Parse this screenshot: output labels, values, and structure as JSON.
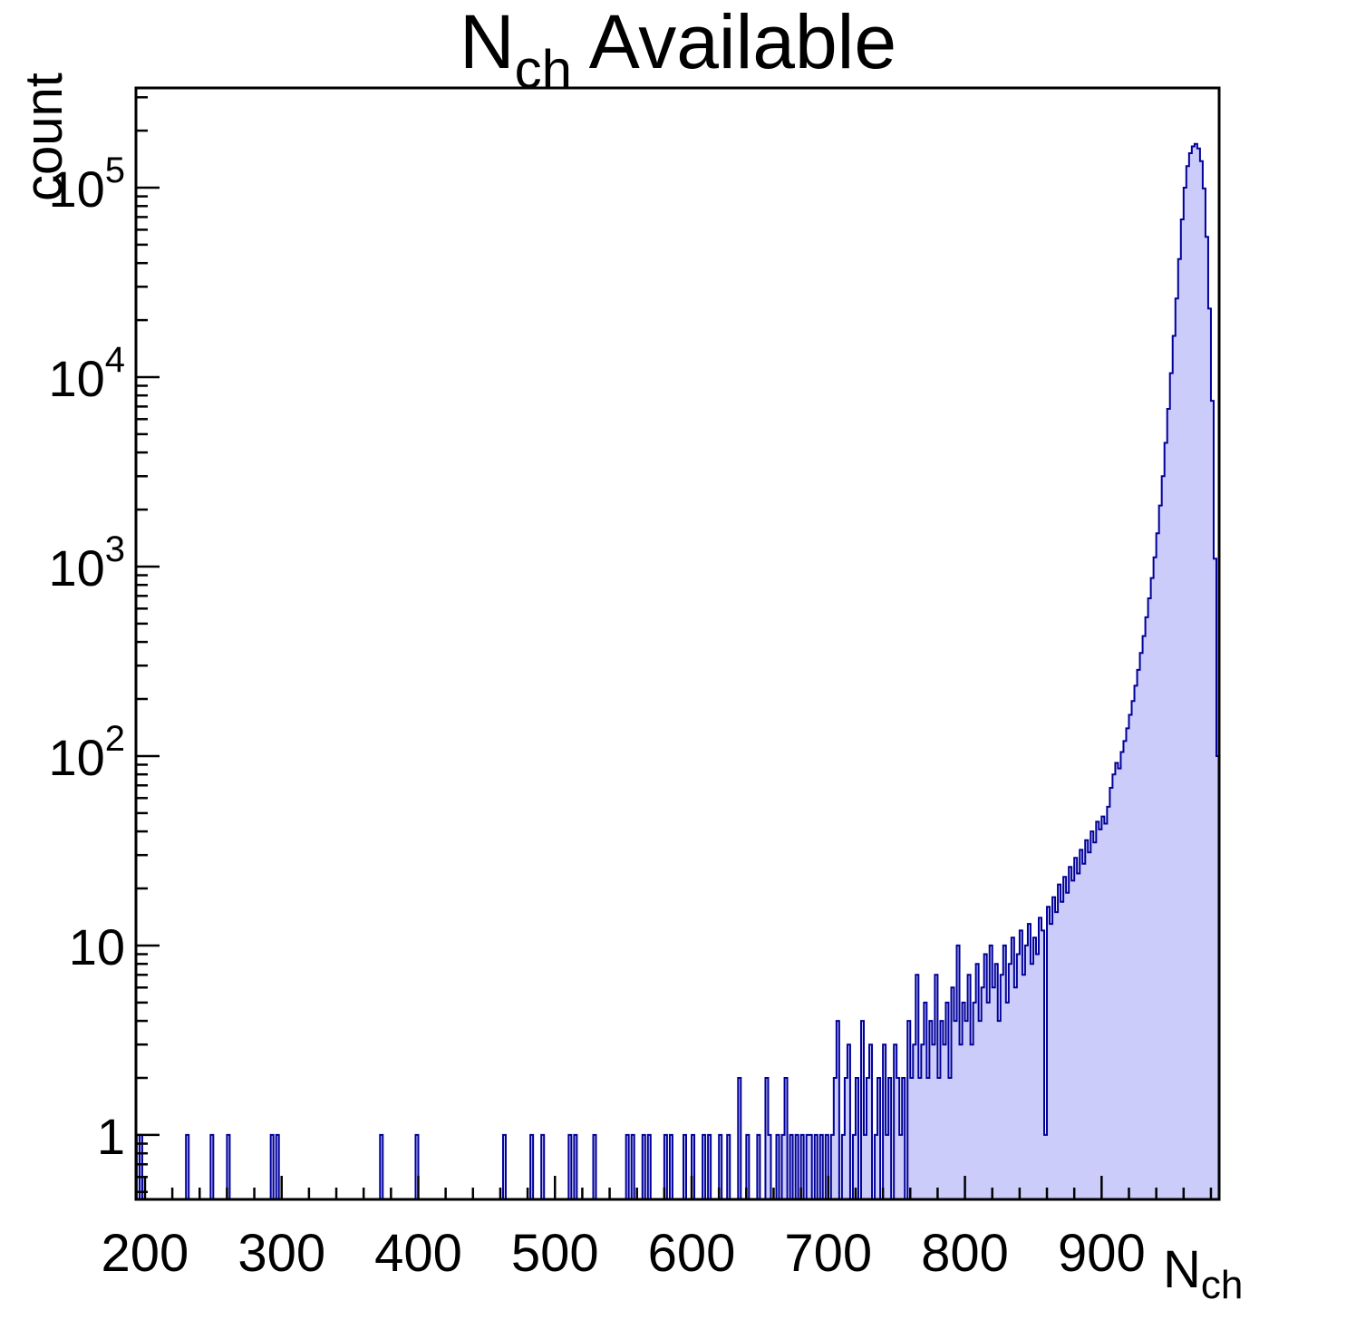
{
  "title": {
    "prefix": "N",
    "subscript": "ch",
    "suffix": " Available"
  },
  "axes": {
    "y_title": "count",
    "x_title_prefix": "N",
    "x_title_subscript": "ch"
  },
  "colors": {
    "fill": "#ccccfb",
    "line": "#000099",
    "axis": "#000000",
    "background": "#ffffff"
  },
  "chart_data": {
    "type": "bar",
    "title": "N_ch Available",
    "xlabel": "N_ch",
    "ylabel": "count",
    "x_range": [
      193.4,
      986
    ],
    "y_scale": "log",
    "y_range": [
      0.457,
      336000
    ],
    "grid": false,
    "legend": false,
    "bin_width": 2,
    "x_major_ticks": [
      200,
      300,
      400,
      500,
      600,
      700,
      800,
      900
    ],
    "x_minor_step": 20,
    "y_major_labels": [
      {
        "value": 1,
        "text": "1"
      },
      {
        "value": 10,
        "text": "10"
      },
      {
        "value": 100,
        "text": "10",
        "exp": "2"
      },
      {
        "value": 1000,
        "text": "10",
        "exp": "3"
      },
      {
        "value": 10000,
        "text": "10",
        "exp": "4"
      },
      {
        "value": 100000,
        "text": "10",
        "exp": "5"
      }
    ],
    "bins": [
      [
        192,
        1
      ],
      [
        196,
        1
      ],
      [
        230,
        1
      ],
      [
        248,
        1
      ],
      [
        260,
        1
      ],
      [
        292,
        1
      ],
      [
        296,
        1
      ],
      [
        372,
        1
      ],
      [
        398,
        1
      ],
      [
        462,
        1
      ],
      [
        482,
        1
      ],
      [
        490,
        1
      ],
      [
        510,
        1
      ],
      [
        514,
        1
      ],
      [
        528,
        1
      ],
      [
        552,
        1
      ],
      [
        556,
        1
      ],
      [
        564,
        1
      ],
      [
        568,
        1
      ],
      [
        580,
        1
      ],
      [
        584,
        1
      ],
      [
        594,
        1
      ],
      [
        600,
        1
      ],
      [
        608,
        1
      ],
      [
        612,
        1
      ],
      [
        620,
        1
      ],
      [
        626,
        1
      ],
      [
        634,
        2
      ],
      [
        640,
        1
      ],
      [
        648,
        1
      ],
      [
        654,
        2
      ],
      [
        656,
        1
      ],
      [
        662,
        1
      ],
      [
        666,
        1
      ],
      [
        668,
        2
      ],
      [
        672,
        1
      ],
      [
        676,
        1
      ],
      [
        680,
        1
      ],
      [
        684,
        1
      ],
      [
        686,
        1
      ],
      [
        690,
        1
      ],
      [
        694,
        1
      ],
      [
        698,
        1
      ],
      [
        702,
        1
      ],
      [
        704,
        2
      ],
      [
        706,
        4
      ],
      [
        710,
        1
      ],
      [
        712,
        2
      ],
      [
        714,
        3
      ],
      [
        718,
        1
      ],
      [
        720,
        2
      ],
      [
        724,
        4
      ],
      [
        726,
        1
      ],
      [
        728,
        2
      ],
      [
        730,
        3
      ],
      [
        734,
        1
      ],
      [
        736,
        2
      ],
      [
        740,
        3
      ],
      [
        742,
        1
      ],
      [
        744,
        2
      ],
      [
        748,
        3
      ],
      [
        750,
        2
      ],
      [
        752,
        1
      ],
      [
        754,
        2
      ],
      [
        758,
        4
      ],
      [
        760,
        2
      ],
      [
        762,
        3
      ],
      [
        764,
        7
      ],
      [
        766,
        2
      ],
      [
        768,
        3
      ],
      [
        770,
        5
      ],
      [
        772,
        2
      ],
      [
        774,
        4
      ],
      [
        776,
        3
      ],
      [
        778,
        7
      ],
      [
        780,
        2
      ],
      [
        782,
        4
      ],
      [
        784,
        3
      ],
      [
        786,
        5
      ],
      [
        788,
        2
      ],
      [
        790,
        6
      ],
      [
        792,
        4
      ],
      [
        794,
        10
      ],
      [
        796,
        3
      ],
      [
        798,
        5
      ],
      [
        800,
        4
      ],
      [
        802,
        7
      ],
      [
        804,
        3
      ],
      [
        806,
        5
      ],
      [
        808,
        8
      ],
      [
        810,
        4
      ],
      [
        812,
        6
      ],
      [
        814,
        9
      ],
      [
        816,
        5
      ],
      [
        818,
        10
      ],
      [
        820,
        6
      ],
      [
        822,
        8
      ],
      [
        824,
        4
      ],
      [
        826,
        7
      ],
      [
        828,
        10
      ],
      [
        830,
        5
      ],
      [
        832,
        8
      ],
      [
        834,
        11
      ],
      [
        836,
        6
      ],
      [
        838,
        9
      ],
      [
        840,
        12
      ],
      [
        842,
        7
      ],
      [
        844,
        10
      ],
      [
        846,
        13
      ],
      [
        848,
        8
      ],
      [
        850,
        11
      ],
      [
        852,
        9
      ],
      [
        854,
        14
      ],
      [
        856,
        12
      ],
      [
        858,
        1
      ],
      [
        860,
        16
      ],
      [
        862,
        13
      ],
      [
        864,
        18
      ],
      [
        866,
        15
      ],
      [
        868,
        21
      ],
      [
        870,
        17
      ],
      [
        872,
        23
      ],
      [
        874,
        19
      ],
      [
        876,
        26
      ],
      [
        878,
        22
      ],
      [
        880,
        29
      ],
      [
        882,
        24
      ],
      [
        884,
        32
      ],
      [
        886,
        27
      ],
      [
        888,
        36
      ],
      [
        890,
        31
      ],
      [
        892,
        40
      ],
      [
        894,
        35
      ],
      [
        896,
        45
      ],
      [
        898,
        41
      ],
      [
        900,
        48
      ],
      [
        902,
        44
      ],
      [
        904,
        54
      ],
      [
        906,
        68
      ],
      [
        908,
        80
      ],
      [
        910,
        92
      ],
      [
        912,
        86
      ],
      [
        914,
        105
      ],
      [
        916,
        120
      ],
      [
        918,
        140
      ],
      [
        920,
        165
      ],
      [
        922,
        195
      ],
      [
        924,
        235
      ],
      [
        926,
        285
      ],
      [
        928,
        350
      ],
      [
        930,
        430
      ],
      [
        932,
        540
      ],
      [
        934,
        680
      ],
      [
        936,
        870
      ],
      [
        938,
        1120
      ],
      [
        940,
        1500
      ],
      [
        942,
        2100
      ],
      [
        944,
        3000
      ],
      [
        946,
        4500
      ],
      [
        948,
        6800
      ],
      [
        950,
        10500
      ],
      [
        952,
        16500
      ],
      [
        954,
        26000
      ],
      [
        956,
        42000
      ],
      [
        958,
        68000
      ],
      [
        960,
        100000
      ],
      [
        962,
        130000
      ],
      [
        964,
        152000
      ],
      [
        966,
        165000
      ],
      [
        968,
        170000
      ],
      [
        970,
        161000
      ],
      [
        972,
        138000
      ],
      [
        974,
        99000
      ],
      [
        976,
        55000
      ],
      [
        978,
        23000
      ],
      [
        980,
        7500
      ],
      [
        982,
        1100
      ],
      [
        984,
        100
      ]
    ]
  }
}
